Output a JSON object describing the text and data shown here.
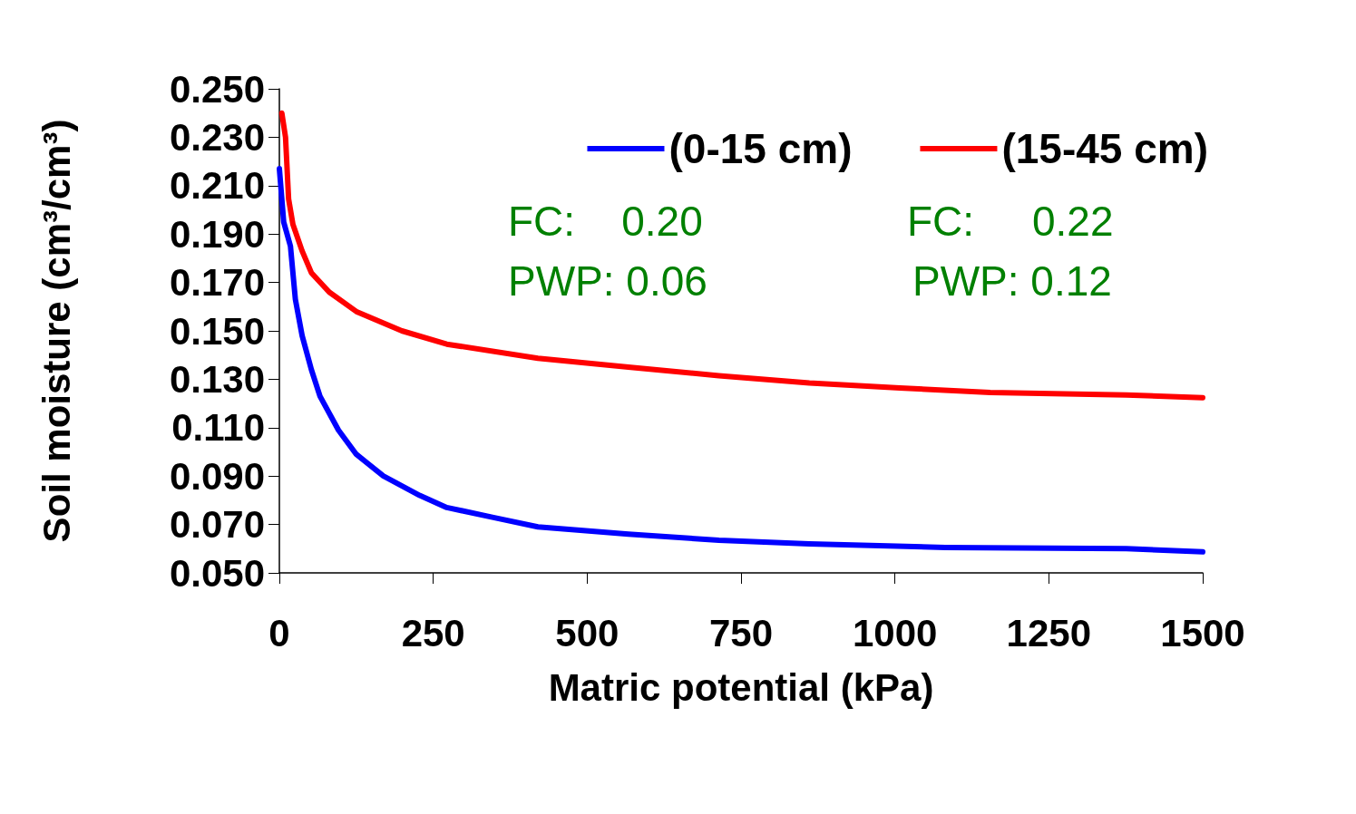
{
  "chart_data": {
    "type": "line",
    "xlabel": "Matric potential (kPa)",
    "ylabel": "Soil moisture (cm³/cm³)",
    "xlim": [
      0,
      1500
    ],
    "xticks": [
      0,
      250,
      500,
      750,
      1000,
      1250,
      1500
    ],
    "ylim": [
      0.05,
      0.25
    ],
    "yticks": [
      {
        "value": 0.05,
        "label": "0.050"
      },
      {
        "value": 0.07,
        "label": "0.070"
      },
      {
        "value": 0.09,
        "label": "0.090"
      },
      {
        "value": 0.11,
        "label": "0.110"
      },
      {
        "value": 0.13,
        "label": "0.130"
      },
      {
        "value": 0.15,
        "label": "0.150"
      },
      {
        "value": 0.17,
        "label": "0.170"
      },
      {
        "value": 0.19,
        "label": "0.190"
      },
      {
        "value": 0.21,
        "label": "0.210"
      },
      {
        "value": 0.23,
        "label": "0.230"
      },
      {
        "value": 0.25,
        "label": "0.250"
      }
    ],
    "grid": false,
    "legend": "top right",
    "marker": "none",
    "line_style": "solid",
    "series": [
      {
        "name": "(0-15 cm)",
        "color": "#0000ff",
        "x": [
          0,
          7,
          18,
          26,
          37,
          52,
          66,
          96,
          125,
          169,
          228,
          272,
          346,
          420,
          567,
          714,
          861,
          1082,
          1376,
          1500
        ],
        "values": [
          0.217,
          0.195,
          0.185,
          0.163,
          0.148,
          0.134,
          0.123,
          0.109,
          0.099,
          0.09,
          0.082,
          0.077,
          0.073,
          0.069,
          0.066,
          0.0635,
          0.062,
          0.0605,
          0.06,
          0.0587
        ]
      },
      {
        "name": "(15-45 cm)",
        "color": "#ff0000",
        "x": [
          4,
          10,
          15,
          22,
          37,
          52,
          81,
          125,
          199,
          272,
          420,
          567,
          714,
          861,
          1008,
          1155,
          1376,
          1500
        ],
        "values": [
          0.24,
          0.23,
          0.2045,
          0.194,
          0.183,
          0.174,
          0.166,
          0.158,
          0.15,
          0.1445,
          0.1387,
          0.135,
          0.1315,
          0.1285,
          0.1264,
          0.1245,
          0.1235,
          0.1224
        ]
      }
    ],
    "annotations": [
      "FC:    0.20",
      "PWP: 0.06",
      "FC:     0.22",
      "PWP: 0.12"
    ]
  }
}
